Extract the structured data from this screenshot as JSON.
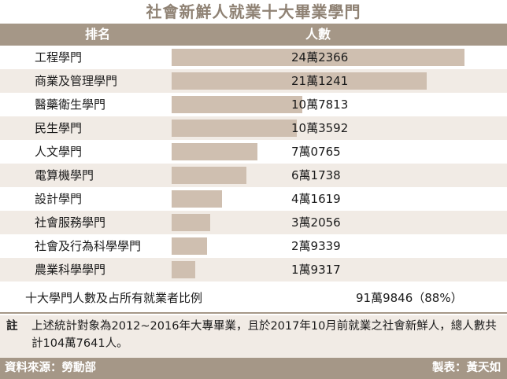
{
  "title": "社會新鮮人就業十大畢業學門",
  "header": {
    "name_label": "排名",
    "value_label": "人數"
  },
  "chart_data": {
    "type": "bar",
    "title": "社會新鮮人就業十大畢業學門",
    "categories": [
      "工程學門",
      "商業及管理學門",
      "醫藥衛生學門",
      "民生學門",
      "人文學門",
      "電算機學門",
      "設計學門",
      "社會服務學門",
      "社會及行為科學學門",
      "農業科學學門"
    ],
    "values": [
      242366,
      211241,
      107813,
      103592,
      70765,
      61738,
      41619,
      32056,
      29339,
      19317
    ],
    "value_labels": [
      "24萬2366",
      "21萬1241",
      "10萬7813",
      "10萬3592",
      "7萬0765",
      "6萬1738",
      "4萬1619",
      "3萬2056",
      "2萬9339",
      "1萬9317"
    ],
    "xlim": [
      0,
      250000
    ],
    "bar_color": "#cfbfb0"
  },
  "summary": {
    "label": "十大學門人數及占所有就業者比例",
    "value": "91萬9846（88%）"
  },
  "note": {
    "mark": "註",
    "text": "上述統計對象為2012~2016年大專畢業，且於2017年10月前就業之社會新鮮人，總人數共計104萬7641人。"
  },
  "footer": {
    "source": "資料來源：勞動部",
    "maker": "製表：黃天如"
  },
  "colors": {
    "header_bg": "#a59787",
    "alt_row_bg": "#f1ebe5",
    "title_color": "#8f8274"
  }
}
